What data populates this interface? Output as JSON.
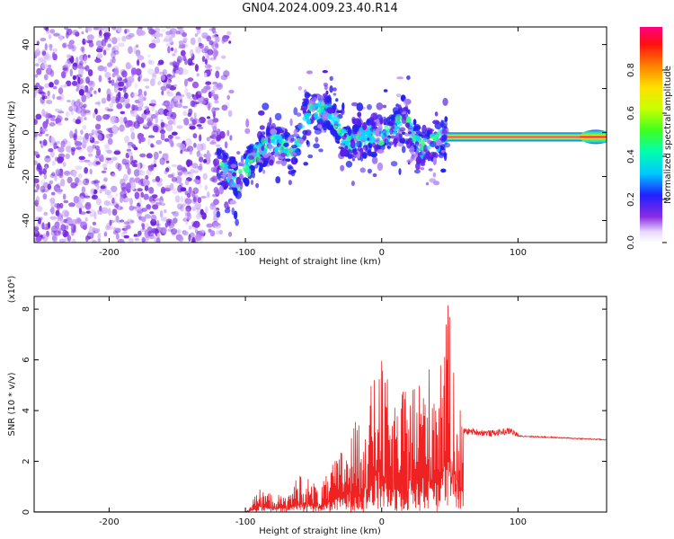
{
  "title": "GN04.2024.009.23.40.R14",
  "chart_data": [
    {
      "type": "heatmap",
      "xlabel": "Height of straight line (km)",
      "ylabel": "Frequency (Hz)",
      "xlim": [
        -255,
        165
      ],
      "ylim": [
        -50,
        48
      ],
      "xticks": [
        -200,
        -100,
        0,
        100
      ],
      "yticks": [
        -40,
        -20,
        0,
        20,
        40
      ],
      "colorbar": {
        "label": "Normalized spectral amplitude",
        "range": [
          0.0,
          1.0
        ],
        "ticks": [
          0.0,
          0.2,
          0.4,
          0.6,
          0.8
        ]
      },
      "features": {
        "noise_region_x": [
          -255,
          -120
        ],
        "signal_track": [
          {
            "x": -120,
            "f": -15
          },
          {
            "x": -105,
            "f": -22
          },
          {
            "x": -95,
            "f": -12
          },
          {
            "x": -80,
            "f": -3
          },
          {
            "x": -65,
            "f": -10
          },
          {
            "x": -55,
            "f": 8
          },
          {
            "x": -40,
            "f": 10
          },
          {
            "x": -25,
            "f": -5
          },
          {
            "x": -10,
            "f": -2
          },
          {
            "x": 5,
            "f": 0
          },
          {
            "x": 18,
            "f": 5
          },
          {
            "x": 28,
            "f": -8
          },
          {
            "x": 40,
            "f": -4
          },
          {
            "x": 48,
            "f": -2
          }
        ],
        "carrier_line": {
          "x_start": 48,
          "x_end": 165,
          "f": -2
        }
      }
    },
    {
      "type": "line",
      "xlabel": "Height of straight line (km)",
      "ylabel": "SNR (10 * v/v)",
      "yscale_label": "(x10⁴)",
      "xlim": [
        -255,
        165
      ],
      "ylim": [
        0,
        8.5
      ],
      "xticks": [
        -200,
        -100,
        0,
        100
      ],
      "yticks": [
        0,
        2,
        4,
        6,
        8
      ],
      "series": [
        {
          "color": "#ee2222",
          "envelope": [
            {
              "x": -255,
              "y": 0.0
            },
            {
              "x": -100,
              "y": 0.0
            },
            {
              "x": -90,
              "y": 0.9
            },
            {
              "x": -70,
              "y": 0.6
            },
            {
              "x": -60,
              "y": 1.6
            },
            {
              "x": -45,
              "y": 1.0
            },
            {
              "x": -30,
              "y": 2.5
            },
            {
              "x": -20,
              "y": 3.5
            },
            {
              "x": -10,
              "y": 4.5
            },
            {
              "x": -2,
              "y": 6.4
            },
            {
              "x": 10,
              "y": 4.2
            },
            {
              "x": 20,
              "y": 5.2
            },
            {
              "x": 30,
              "y": 5.5
            },
            {
              "x": 40,
              "y": 6.2
            },
            {
              "x": 48,
              "y": 8.5
            },
            {
              "x": 55,
              "y": 5.5
            },
            {
              "x": 60,
              "y": 3.2
            },
            {
              "x": 80,
              "y": 3.1
            },
            {
              "x": 95,
              "y": 3.2
            },
            {
              "x": 100,
              "y": 3.0
            },
            {
              "x": 165,
              "y": 2.85
            }
          ]
        }
      ]
    }
  ]
}
